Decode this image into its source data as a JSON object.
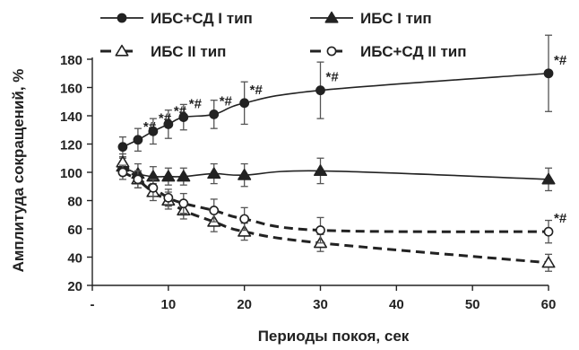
{
  "chart_data": {
    "type": "line",
    "xlabel": "Периоды покоя, сек",
    "ylabel": "Амплитуда сокращений, %",
    "xlim": [
      0,
      60
    ],
    "ylim": [
      20,
      180
    ],
    "x_ticks": [
      {
        "value": 0,
        "label": "-"
      },
      {
        "value": 10,
        "label": "10"
      },
      {
        "value": 20,
        "label": "20"
      },
      {
        "value": 30,
        "label": "30"
      },
      {
        "value": 40,
        "label": "40"
      },
      {
        "value": 50,
        "label": "50"
      },
      {
        "value": 60,
        "label": "60"
      }
    ],
    "y_ticks": [
      20,
      40,
      60,
      80,
      100,
      120,
      140,
      160,
      180
    ],
    "grid": false,
    "legend_position": "top",
    "series": [
      {
        "name": "ИБС+СД I тип",
        "marker": "filled-circle",
        "line": "solid",
        "x": [
          4,
          6,
          8,
          10,
          12,
          16,
          20,
          30,
          60
        ],
        "y": [
          118,
          123,
          129,
          134,
          139,
          141,
          149,
          158,
          170
        ],
        "err": [
          7,
          8,
          9,
          10,
          9,
          10,
          15,
          20,
          27
        ],
        "annotations": [
          "",
          "*#",
          "*#",
          "*#",
          "*#",
          "*#",
          "*#",
          "*#",
          "*#"
        ]
      },
      {
        "name": "ИБС I тип",
        "marker": "filled-triangle",
        "line": "solid",
        "x": [
          4,
          6,
          8,
          10,
          12,
          16,
          20,
          30,
          60
        ],
        "y": [
          104,
          99,
          97,
          97,
          97,
          99,
          98,
          101,
          95
        ],
        "err": [
          6,
          7,
          7,
          6,
          6,
          7,
          8,
          9,
          8
        ],
        "annotations": [
          "",
          "",
          "",
          "",
          "",
          "",
          "",
          "",
          ""
        ]
      },
      {
        "name": "ИБС II тип",
        "marker": "open-triangle",
        "line": "dashed",
        "x": [
          4,
          6,
          8,
          10,
          12,
          16,
          20,
          30,
          60
        ],
        "y": [
          107,
          95,
          86,
          80,
          73,
          65,
          58,
          50,
          36
        ],
        "err": [
          6,
          6,
          6,
          6,
          6,
          7,
          6,
          6,
          6
        ],
        "annotations": [
          "",
          "",
          "",
          "",
          "",
          "",
          "",
          "",
          ""
        ]
      },
      {
        "name": "ИБС+СД II тип",
        "marker": "open-circle",
        "line": "dashed",
        "x": [
          4,
          6,
          8,
          10,
          12,
          16,
          20,
          30,
          60
        ],
        "y": [
          100,
          95,
          89,
          82,
          78,
          73,
          67,
          59,
          58
        ],
        "err": [
          5,
          6,
          6,
          6,
          7,
          8,
          8,
          9,
          8
        ],
        "annotations": [
          "",
          "",
          "",
          "",
          "",
          "",
          "",
          "",
          "*#"
        ]
      }
    ]
  }
}
